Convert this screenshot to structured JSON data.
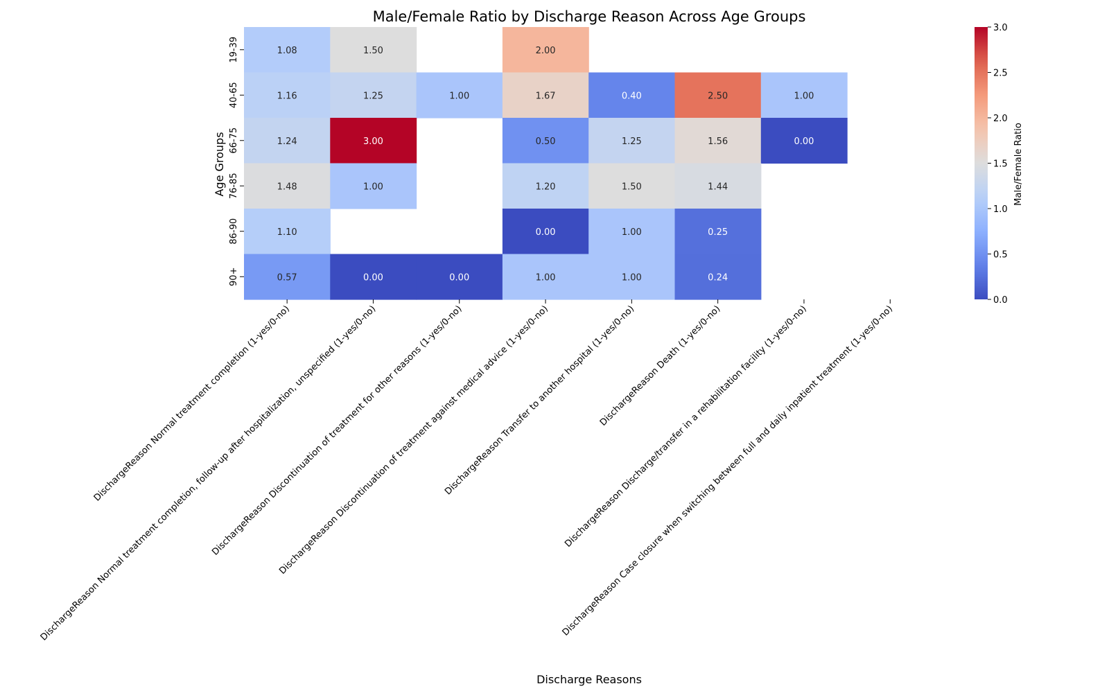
{
  "chart_data": {
    "type": "heatmap",
    "title": "Male/Female Ratio by Discharge Reason Across Age Groups",
    "xlabel": "Discharge Reasons",
    "ylabel": "Age Groups",
    "colorbar_label": "Male/Female Ratio",
    "colormap": "coolwarm",
    "vmin": 0.0,
    "vmax": 3.0,
    "colorbar_ticks": [
      "0.0",
      "0.5",
      "1.0",
      "1.5",
      "2.0",
      "2.5",
      "3.0"
    ],
    "y_categories": [
      "19-39",
      "40-65",
      "66-75",
      "76-85",
      "86-90",
      "90+"
    ],
    "x_categories": [
      "DischargeReason Normal treatment completion (1-yes/0-no)",
      "DischargeReason Normal treatment completion, follow-up after hospitalization, unspecified (1-yes/0-no)",
      "DischargeReason Discontinuation of treatment for other reasons (1-yes/0-no)",
      "DischargeReason Discontinuation of treatment against  medical advice (1-yes/0-no)",
      "DischargeReason Transfer to another hospital (1-yes/0-no)",
      "DischargeReason Death (1-yes/0-no)",
      "DischargeReason Discharge/transfer in a rehabilitation facility (1-yes/0-no)",
      "DischargeReason Case closure when switching between full and daily inpatient treatment (1-yes/0-no)"
    ],
    "values": [
      [
        1.08,
        1.5,
        null,
        2.0,
        null,
        null,
        null,
        null
      ],
      [
        1.16,
        1.25,
        1.0,
        1.67,
        0.4,
        2.5,
        1.0,
        null
      ],
      [
        1.24,
        3.0,
        null,
        0.5,
        1.25,
        1.56,
        0.0,
        null
      ],
      [
        1.48,
        1.0,
        null,
        1.2,
        1.5,
        1.44,
        null,
        null
      ],
      [
        1.1,
        null,
        null,
        0.0,
        1.0,
        0.25,
        null,
        null
      ],
      [
        0.57,
        0.0,
        0.0,
        1.0,
        1.0,
        0.24,
        null,
        null
      ]
    ],
    "value_labels": [
      [
        "1.08",
        "1.50",
        "",
        "2.00",
        "",
        "",
        "",
        ""
      ],
      [
        "1.16",
        "1.25",
        "1.00",
        "1.67",
        "0.40",
        "2.50",
        "1.00",
        ""
      ],
      [
        "1.24",
        "3.00",
        "",
        "0.50",
        "1.25",
        "1.56",
        "0.00",
        ""
      ],
      [
        "1.48",
        "1.00",
        "",
        "1.20",
        "1.50",
        "1.44",
        "",
        ""
      ],
      [
        "1.10",
        "",
        "",
        "0.00",
        "1.00",
        "0.25",
        "",
        ""
      ],
      [
        "0.57",
        "0.00",
        "0.00",
        "1.00",
        "1.00",
        "0.24",
        "",
        ""
      ]
    ]
  }
}
